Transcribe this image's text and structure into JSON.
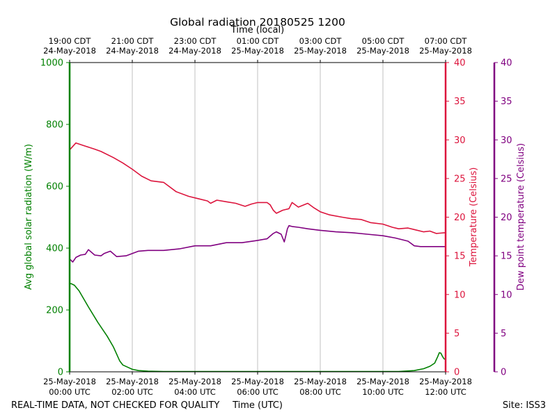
{
  "chart_data": {
    "type": "line",
    "title": "Global radiation 20180525 1200",
    "top_axis_label": "Time (local)",
    "xlabel": "Time (UTC)",
    "footer_left": "REAL-TIME DATA, NOT CHECKED FOR QUALITY",
    "footer_right": "Site: ISS3",
    "x_range_utc_hours": [
      0,
      12
    ],
    "top_ticks": [
      {
        "hour": 0,
        "time": "19:00 CDT",
        "date": "24-May-2018"
      },
      {
        "hour": 2,
        "time": "21:00 CDT",
        "date": "24-May-2018"
      },
      {
        "hour": 4,
        "time": "23:00 CDT",
        "date": "24-May-2018"
      },
      {
        "hour": 6,
        "time": "01:00 CDT",
        "date": "25-May-2018"
      },
      {
        "hour": 8,
        "time": "03:00 CDT",
        "date": "25-May-2018"
      },
      {
        "hour": 10,
        "time": "05:00 CDT",
        "date": "25-May-2018"
      },
      {
        "hour": 12,
        "time": "07:00 CDT",
        "date": "25-May-2018"
      }
    ],
    "bottom_ticks": [
      {
        "hour": 0,
        "date": "25-May-2018",
        "time": "00:00 UTC"
      },
      {
        "hour": 2,
        "date": "25-May-2018",
        "time": "02:00 UTC"
      },
      {
        "hour": 4,
        "date": "25-May-2018",
        "time": "04:00 UTC"
      },
      {
        "hour": 6,
        "date": "25-May-2018",
        "time": "06:00 UTC"
      },
      {
        "hour": 8,
        "date": "25-May-2018",
        "time": "08:00 UTC"
      },
      {
        "hour": 10,
        "date": "25-May-2018",
        "time": "10:00 UTC"
      },
      {
        "hour": 12,
        "date": "25-May-2018",
        "time": "12:00 UTC"
      }
    ],
    "grid": "vertical",
    "axes": [
      {
        "id": "radiation",
        "label": "Avg global solar radiation (W/m)",
        "color": "#008000",
        "ylim": [
          0,
          1000
        ],
        "ticks": [
          0,
          200,
          400,
          600,
          800,
          1000
        ]
      },
      {
        "id": "temperature",
        "label": "Temperature (Celsius)",
        "color": "#dc143c",
        "ylim": [
          0,
          40
        ],
        "ticks": [
          0,
          5,
          10,
          15,
          20,
          25,
          30,
          35,
          40
        ]
      },
      {
        "id": "dewpoint",
        "label": "Dew point temperature (Celsius)",
        "color": "#800080",
        "ylim": [
          0,
          40
        ],
        "ticks": [
          0,
          5,
          10,
          15,
          20,
          25,
          30,
          35,
          40
        ]
      }
    ],
    "series": [
      {
        "axis": "radiation",
        "color": "#008000",
        "x": [
          0,
          0.05,
          0.15,
          0.3,
          0.6,
          0.9,
          1.2,
          1.4,
          1.6,
          1.7,
          1.85,
          2.0,
          2.2,
          2.5,
          3.0,
          4.0,
          6.0,
          8.0,
          10.0,
          10.5,
          11.0,
          11.3,
          11.5,
          11.65,
          11.75,
          11.8,
          11.85,
          11.9,
          11.95,
          12.0
        ],
        "values": [
          285,
          285,
          280,
          262,
          210,
          160,
          115,
          80,
          35,
          22,
          15,
          8,
          4,
          2,
          1,
          1,
          1,
          1,
          1,
          1,
          4,
          10,
          18,
          28,
          50,
          62,
          60,
          50,
          42,
          40
        ]
      },
      {
        "axis": "temperature",
        "color": "#dc143c",
        "x": [
          0,
          0.2,
          0.5,
          0.8,
          1.0,
          1.4,
          1.7,
          2.0,
          2.3,
          2.6,
          3.0,
          3.4,
          3.8,
          4.1,
          4.4,
          4.5,
          4.7,
          5.0,
          5.3,
          5.6,
          5.8,
          6.0,
          6.3,
          6.4,
          6.5,
          6.6,
          6.8,
          6.9,
          7.0,
          7.1,
          7.3,
          7.6,
          7.8,
          8.0,
          8.3,
          8.7,
          9.0,
          9.3,
          9.6,
          10.0,
          10.3,
          10.5,
          10.8,
          11.0,
          11.3,
          11.5,
          11.7,
          12.0
        ],
        "values": [
          28.7,
          29.6,
          29.2,
          28.8,
          28.5,
          27.7,
          27.0,
          26.2,
          25.3,
          24.7,
          24.5,
          23.3,
          22.7,
          22.4,
          22.1,
          21.8,
          22.2,
          22.0,
          21.8,
          21.4,
          21.7,
          21.9,
          21.9,
          21.6,
          20.9,
          20.5,
          20.9,
          21.0,
          21.1,
          21.9,
          21.3,
          21.8,
          21.2,
          20.7,
          20.3,
          20.0,
          19.8,
          19.7,
          19.3,
          19.1,
          18.7,
          18.5,
          18.6,
          18.4,
          18.1,
          18.2,
          17.9,
          18.0
        ]
      },
      {
        "axis": "dewpoint",
        "color": "#800080",
        "x": [
          0,
          0.1,
          0.2,
          0.35,
          0.5,
          0.6,
          0.8,
          1.0,
          1.1,
          1.3,
          1.5,
          1.8,
          2.0,
          2.2,
          2.5,
          3.0,
          3.5,
          4.0,
          4.5,
          5.0,
          5.5,
          6.0,
          6.3,
          6.5,
          6.6,
          6.75,
          6.85,
          6.9,
          6.95,
          7.0,
          7.1,
          7.3,
          7.6,
          8.0,
          8.5,
          9.0,
          9.5,
          10.0,
          10.4,
          10.8,
          11.0,
          11.2,
          11.5,
          12.0
        ],
        "values": [
          14.6,
          14.2,
          14.8,
          15.1,
          15.2,
          15.8,
          15.1,
          15.0,
          15.3,
          15.6,
          14.9,
          15.0,
          15.3,
          15.6,
          15.7,
          15.7,
          15.9,
          16.3,
          16.3,
          16.7,
          16.7,
          17.0,
          17.2,
          17.9,
          18.1,
          17.8,
          16.8,
          17.6,
          18.5,
          18.9,
          18.8,
          18.7,
          18.5,
          18.3,
          18.1,
          18.0,
          17.8,
          17.6,
          17.3,
          16.9,
          16.3,
          16.2,
          16.2,
          16.2
        ]
      }
    ]
  }
}
